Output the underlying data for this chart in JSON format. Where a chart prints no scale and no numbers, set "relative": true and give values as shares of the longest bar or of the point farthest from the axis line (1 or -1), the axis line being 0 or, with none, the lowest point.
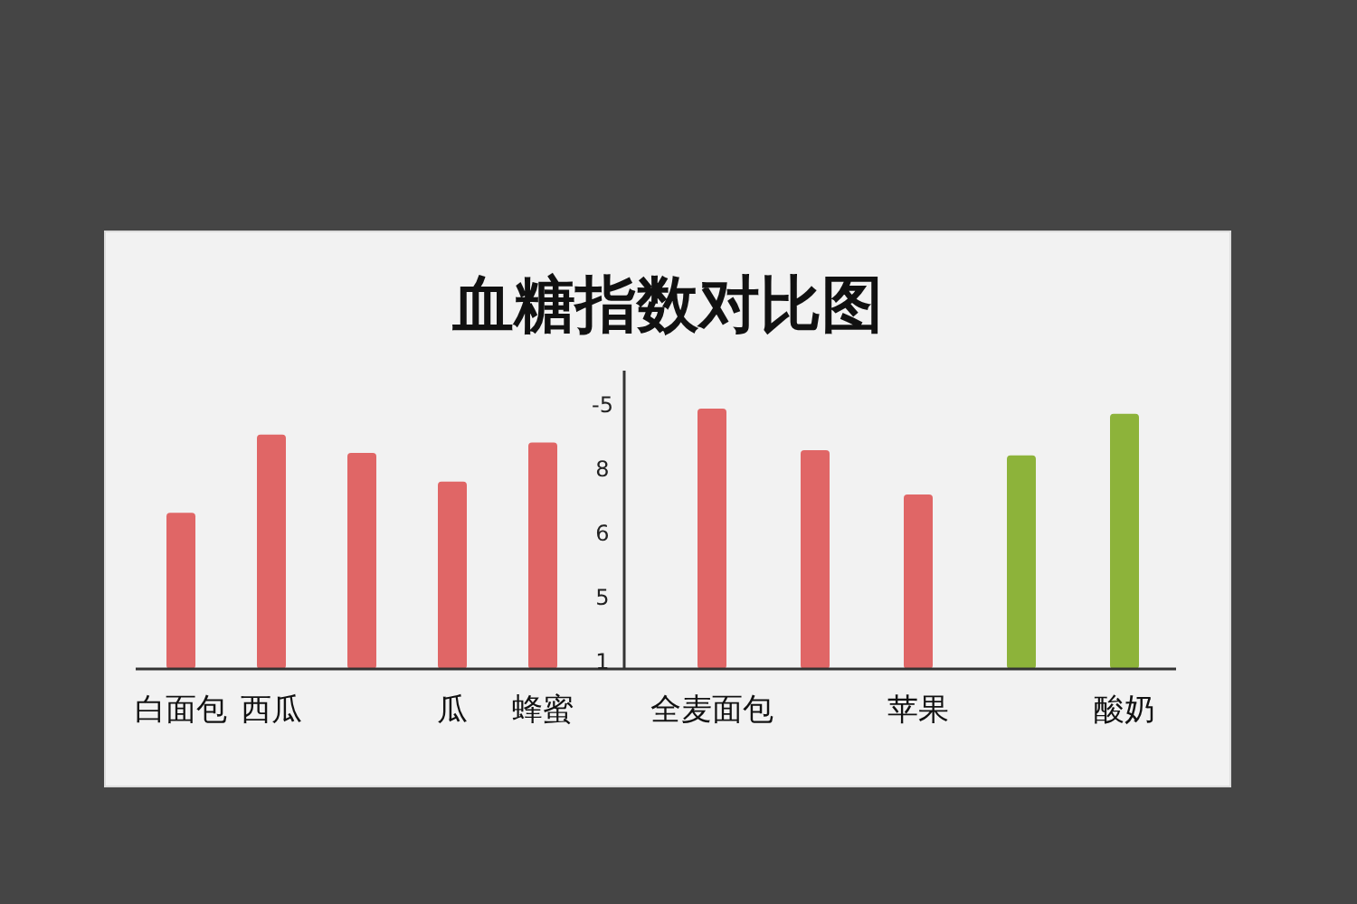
{
  "chart_data": {
    "type": "bar",
    "title": "血糖指数对比图",
    "categories": [
      "白面包",
      "西瓜",
      null,
      "瓜",
      "蜂蜜",
      "全麦面包",
      null,
      "苹果",
      null,
      "酸奶"
    ],
    "values": [
      0.6,
      0.9,
      0.83,
      0.72,
      0.87,
      1,
      0.84,
      0.67,
      0.82,
      0.98
    ],
    "colors": [
      "#e06666",
      "#e06666",
      "#e06666",
      "#e06666",
      "#e06666",
      "#e06666",
      "#e06666",
      "#e06666",
      "#8db33a",
      "#8db33a"
    ],
    "relative": true,
    "annotations": [
      "-5",
      "8",
      "6",
      "5",
      "1"
    ]
  }
}
